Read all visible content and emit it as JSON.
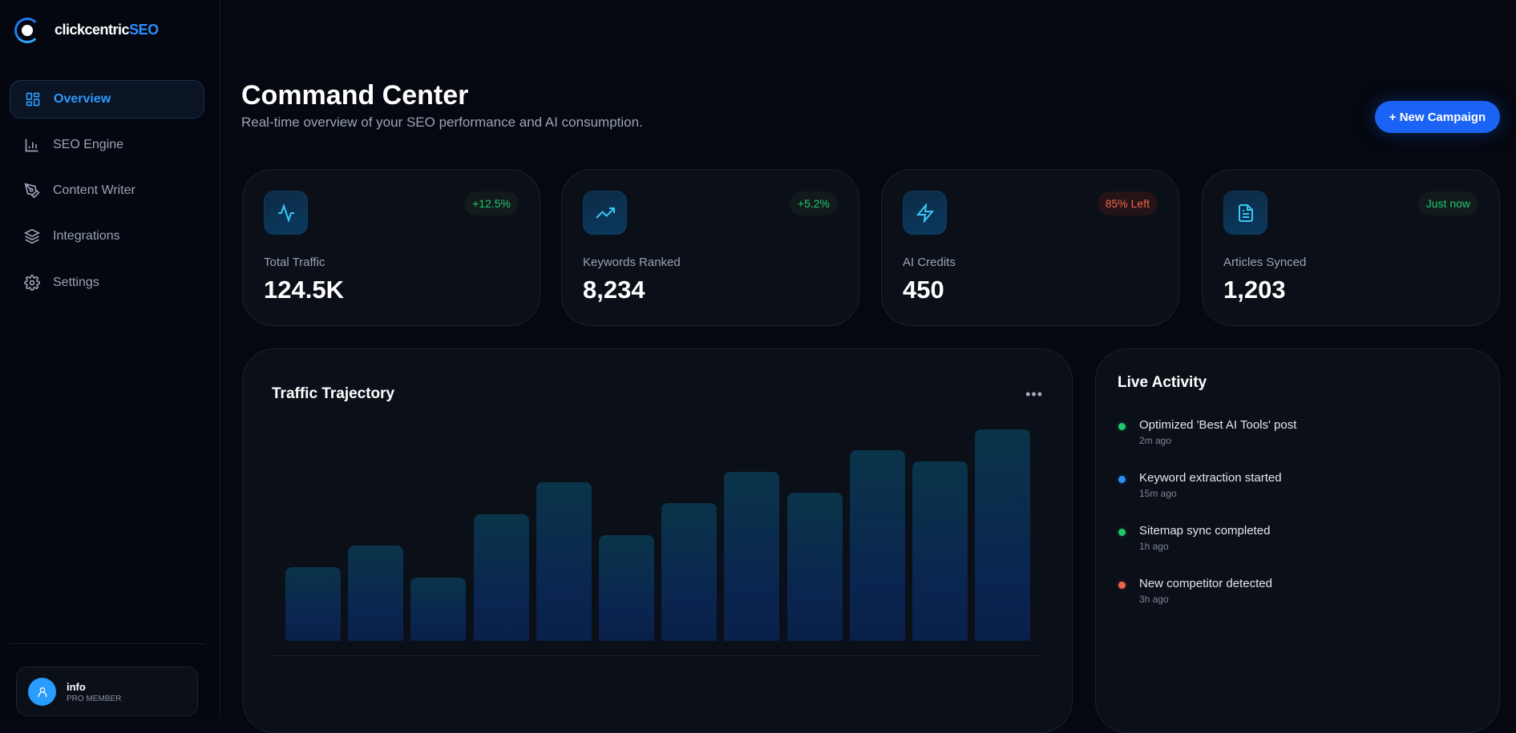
{
  "brand": {
    "name_main": "clickcentric",
    "name_accent": "SEO"
  },
  "sidebar": {
    "items": [
      {
        "label": "Overview",
        "icon": "grid-icon",
        "active": true
      },
      {
        "label": "SEO Engine",
        "icon": "bar-chart-icon"
      },
      {
        "label": "Content Writer",
        "icon": "pen-tool-icon"
      },
      {
        "label": "Integrations",
        "icon": "layers-icon"
      },
      {
        "label": "Settings",
        "icon": "gear-icon"
      }
    ],
    "user": {
      "name": "info",
      "role": "PRO MEMBER"
    }
  },
  "header": {
    "title": "Command Center",
    "subtitle": "Real-time overview of your SEO performance and AI consumption.",
    "new_button": "+ New Campaign"
  },
  "stats": [
    {
      "label": "Total Traffic",
      "value": "124.5K",
      "badge": "+12.5%",
      "badge_color": "#1fc86a",
      "icon": "activity-icon"
    },
    {
      "label": "Keywords Ranked",
      "value": "8,234",
      "badge": "+5.2%",
      "badge_color": "#1fc86a",
      "icon": "trending-up-icon"
    },
    {
      "label": "AI Credits",
      "value": "450",
      "badge": "85% Left",
      "badge_color": "#f0644a",
      "icon": "zap-icon"
    },
    {
      "label": "Articles Synced",
      "value": "1,203",
      "badge": "Just now",
      "badge_color": "#1fc86a",
      "icon": "file-text-icon"
    }
  ],
  "chart": {
    "title": "Traffic Trajectory",
    "menu": "•••"
  },
  "chart_data": {
    "type": "bar",
    "title": "Traffic Trajectory",
    "values": [
      35,
      45,
      30,
      60,
      75,
      50,
      65,
      80,
      70,
      90,
      85,
      100
    ],
    "ylim": [
      0,
      100
    ],
    "grid": false
  },
  "activity": {
    "title": "Live Activity",
    "items": [
      {
        "text": "Optimized 'Best AI Tools' post",
        "time": "2m ago",
        "color": "#1fc86a"
      },
      {
        "text": "Keyword extraction started",
        "time": "15m ago",
        "color": "#2a8ff5"
      },
      {
        "text": "Sitemap sync completed",
        "time": "1h ago",
        "color": "#1fc86a"
      },
      {
        "text": "New competitor detected",
        "time": "3h ago",
        "color": "#f0644a"
      }
    ]
  }
}
